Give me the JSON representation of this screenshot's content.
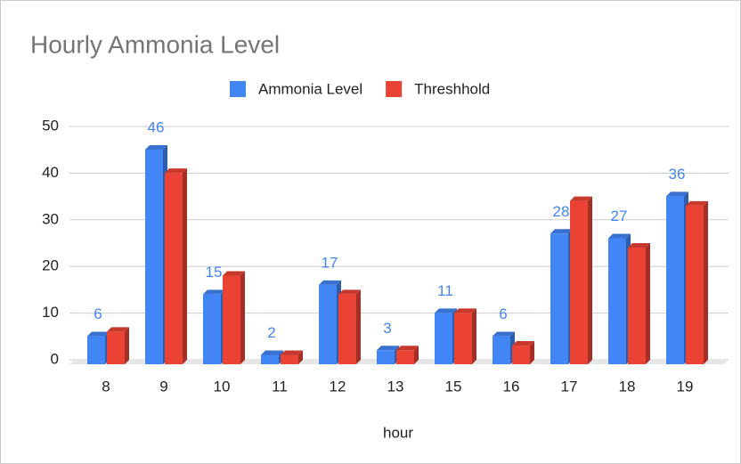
{
  "chart_data": {
    "type": "bar",
    "title": "Hourly Ammonia Level",
    "x_label": "hour",
    "categories": [
      "8",
      "9",
      "10",
      "11",
      "12",
      "13",
      "15",
      "16",
      "17",
      "18",
      "19"
    ],
    "series": [
      {
        "name": "Ammonia Level",
        "color": "#4285f4",
        "values": [
          6,
          46,
          15,
          2,
          17,
          3,
          11,
          6,
          28,
          27,
          36
        ],
        "show_labels": true
      },
      {
        "name": "Threshhold",
        "color": "#ea4335",
        "values": [
          7,
          41,
          19,
          2,
          15,
          3,
          11,
          4,
          35,
          25,
          34
        ],
        "show_labels": false
      }
    ],
    "ylim": [
      0,
      50
    ],
    "yticks": [
      0,
      10,
      20,
      30,
      40,
      50
    ],
    "grid": true,
    "legend": "top"
  }
}
